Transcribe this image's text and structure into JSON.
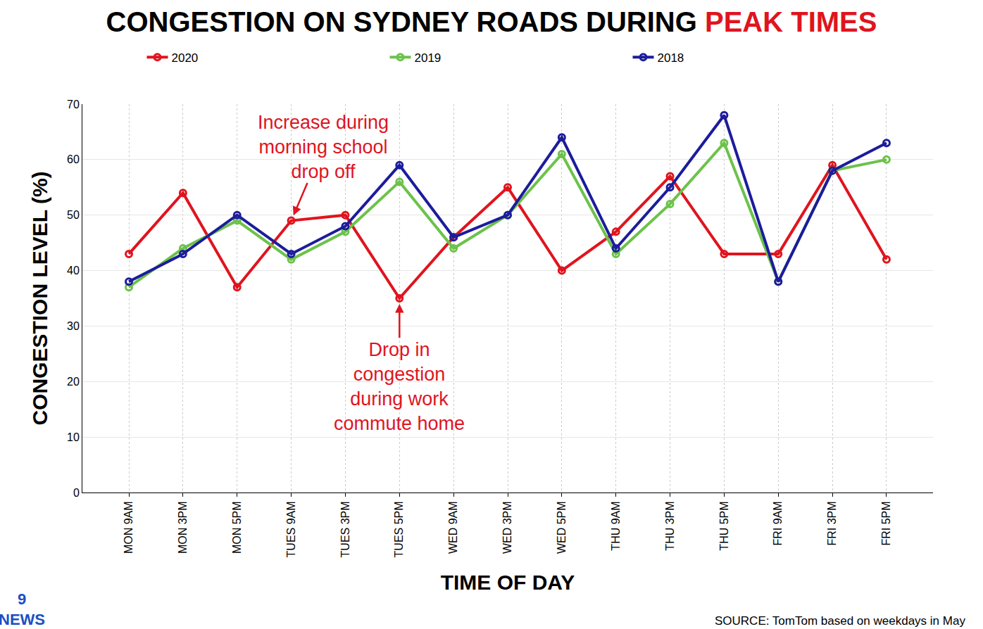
{
  "chart_data": {
    "type": "line",
    "title": "CONGESTION ON SYDNEY ROADS DURING PEAK TIMES",
    "x_label": "TIME OF DAY",
    "y_label": "CONGESTION LEVEL (%)",
    "categories": [
      "MON 9AM",
      "MON 3PM",
      "MON 5PM",
      "TUES 9AM",
      "TUES 3PM",
      "TUES 5PM",
      "WED 9AM",
      "WED 3PM",
      "WED 5PM",
      "THU 9AM",
      "THU 3PM",
      "THU 5PM",
      "FRI 9AM",
      "FRI 3PM",
      "FRI 5PM"
    ],
    "series": [
      {
        "name": "2020",
        "color": "#e0141e",
        "values": [
          43,
          54,
          37,
          49,
          50,
          35,
          46,
          55,
          40,
          47,
          57,
          43,
          43,
          59,
          42
        ]
      },
      {
        "name": "2019",
        "color": "#6cc24a",
        "values": [
          37,
          44,
          49,
          42,
          47,
          56,
          44,
          50,
          61,
          43,
          52,
          63,
          38,
          58,
          60
        ]
      },
      {
        "name": "2018",
        "color": "#1c1c9c",
        "values": [
          38,
          43,
          50,
          43,
          48,
          59,
          46,
          50,
          64,
          44,
          55,
          68,
          38,
          58,
          63
        ]
      }
    ],
    "ylim": [
      0,
      70
    ],
    "yticks": [
      0,
      10,
      20,
      30,
      40,
      50,
      60,
      70
    ],
    "grid": true,
    "legend": "top",
    "marker": "circle",
    "annotations": [
      {
        "text": "Increase during morning school drop off",
        "x": "TUES 9AM",
        "y": 49
      },
      {
        "text": "Drop in congestion during work commute home",
        "x": "TUES 5PM",
        "y": 35
      }
    ],
    "source": "SOURCE: TomTom based on weekdays in May",
    "logo": "9 NEWS"
  }
}
